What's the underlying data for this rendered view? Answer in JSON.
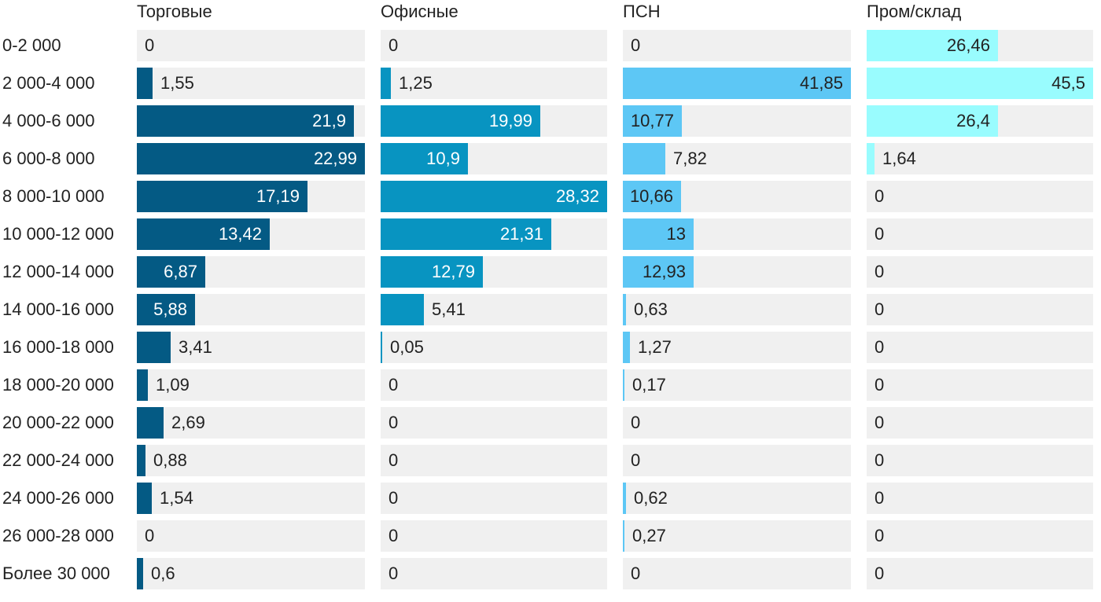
{
  "chart_data": {
    "type": "bar",
    "orientation": "horizontal",
    "layout": "small-multiples",
    "categories": [
      "0-2 000",
      "2 000-4 000",
      "4 000-6 000",
      "6 000-8 000",
      "8 000-10 000",
      "10 000-12 000",
      "12 000-14 000",
      "14 000-16 000",
      "16 000-18 000",
      "18 000-20 000",
      "20 000-22 000",
      "22 000-24 000",
      "24 000-26 000",
      "26 000-28 000",
      "Более 30 000"
    ],
    "series": [
      {
        "name": "Торговые",
        "color": "#045a84",
        "max": 22.99,
        "values": [
          0,
          1.55,
          21.9,
          22.99,
          17.19,
          13.42,
          6.87,
          5.88,
          3.41,
          1.09,
          2.69,
          0.88,
          1.54,
          0,
          0.6
        ],
        "labels": [
          "0",
          "1,55",
          "21,9",
          "22,99",
          "17,19",
          "13,42",
          "6,87",
          "5,88",
          "3,41",
          "1,09",
          "2,69",
          "0,88",
          "1,54",
          "0",
          "0,6"
        ]
      },
      {
        "name": "Офисные",
        "color": "#0894c1",
        "max": 28.32,
        "values": [
          0,
          1.25,
          19.99,
          10.9,
          28.32,
          21.31,
          12.79,
          5.41,
          0.05,
          0,
          0,
          0,
          0,
          0,
          0
        ],
        "labels": [
          "0",
          "1,25",
          "19,99",
          "10,9",
          "28,32",
          "21,31",
          "12,79",
          "5,41",
          "0,05",
          "0",
          "0",
          "0",
          "0",
          "0",
          "0"
        ]
      },
      {
        "name": "ПСН",
        "color": "#5dc7f5",
        "max": 41.85,
        "values": [
          0,
          41.85,
          10.77,
          7.82,
          10.66,
          13,
          12.93,
          0.63,
          1.27,
          0.17,
          0,
          0,
          0.62,
          0.27,
          0
        ],
        "labels": [
          "0",
          "41,85",
          "10,77",
          "7,82",
          "10,66",
          "13",
          "12,93",
          "0,63",
          "1,27",
          "0,17",
          "0",
          "0",
          "0,62",
          "0,27",
          "0"
        ]
      },
      {
        "name": "Пром/склад",
        "color": "#99fcfe",
        "max": 45.5,
        "values": [
          26.46,
          45.5,
          26.4,
          1.64,
          0,
          0,
          0,
          0,
          0,
          0,
          0,
          0,
          0,
          0,
          0
        ],
        "labels": [
          "26,46",
          "45,5",
          "26,4",
          "1,64",
          "0",
          "0",
          "0",
          "0",
          "0",
          "0",
          "0",
          "0",
          "0",
          "0",
          "0"
        ]
      }
    ],
    "inside_label_colors": [
      "#ffffff",
      "#ffffff",
      "#222222",
      "#222222"
    ],
    "background_track_color": "#f0f0f0",
    "grid": false,
    "legend": "none"
  }
}
